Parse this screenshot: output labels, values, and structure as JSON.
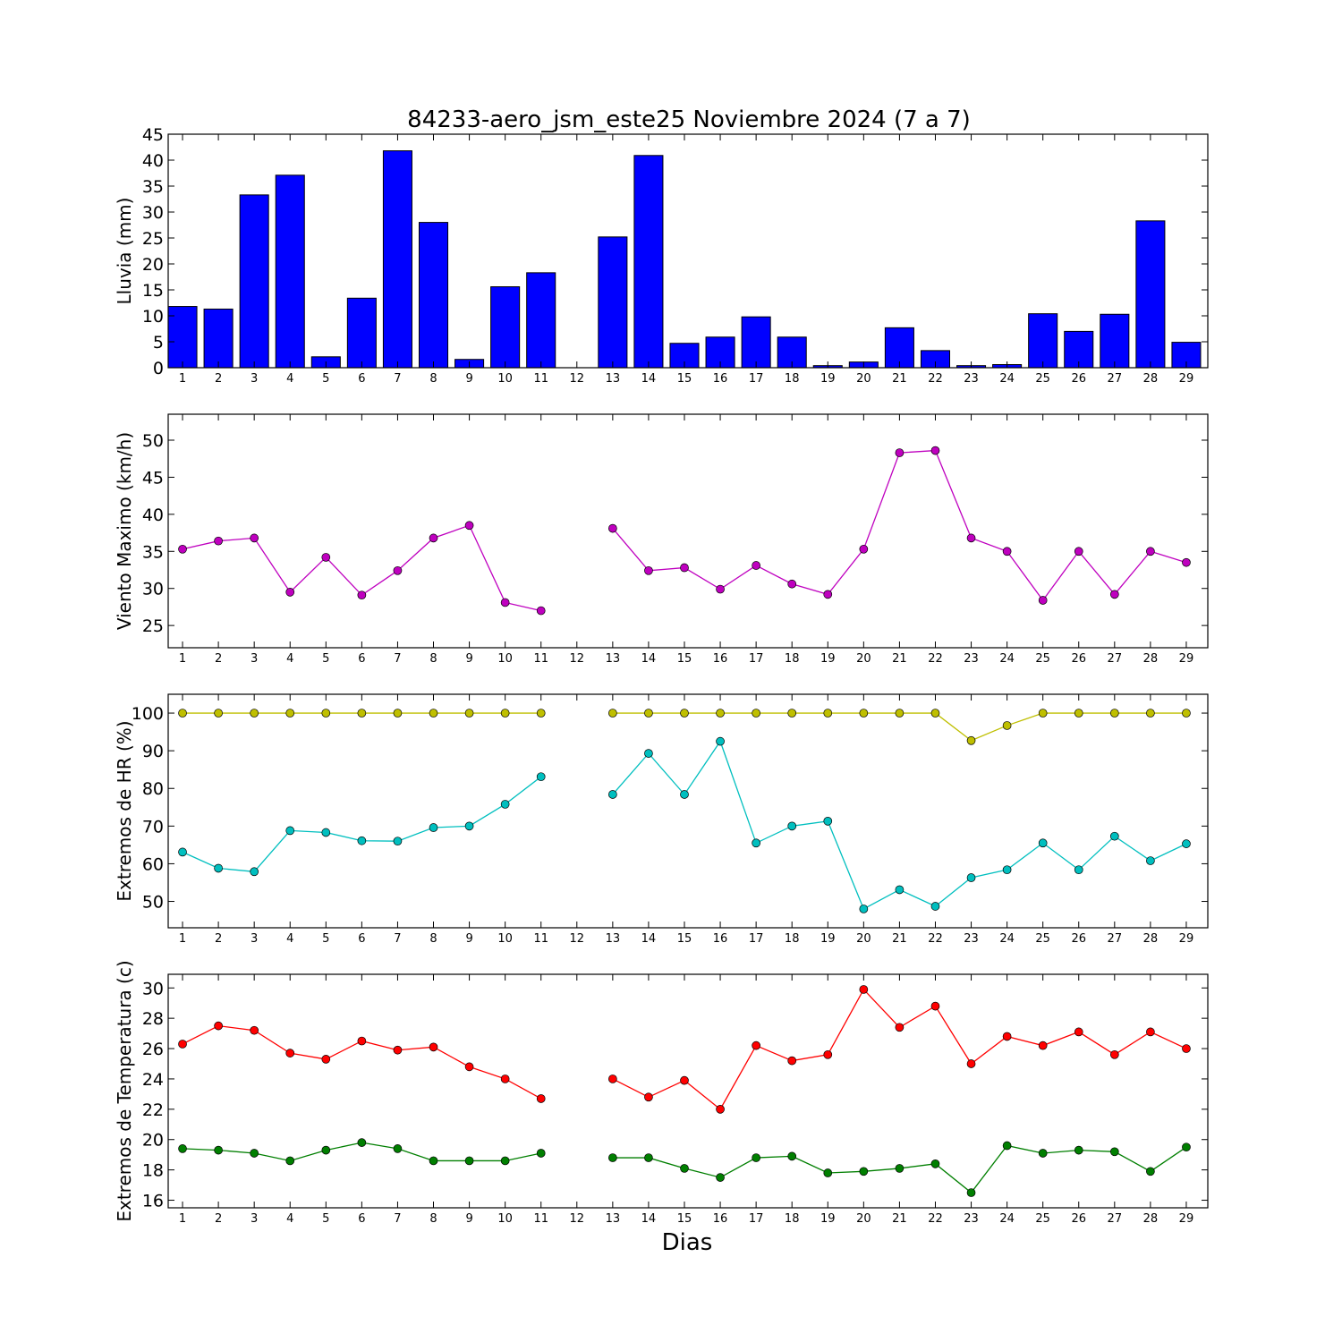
{
  "title": "84233-aero_jsm_este25 Noviembre 2024  (7 a 7)",
  "xlabel": "Dias",
  "chart_data": [
    {
      "type": "bar",
      "ylabel": "Lluvia (mm)",
      "ylim": [
        0,
        45
      ],
      "yticks": [
        0,
        5,
        10,
        15,
        20,
        25,
        30,
        35,
        40,
        45
      ],
      "categories": [
        1,
        2,
        3,
        4,
        5,
        6,
        7,
        8,
        9,
        10,
        11,
        12,
        13,
        14,
        15,
        16,
        17,
        18,
        19,
        20,
        21,
        22,
        23,
        24,
        25,
        26,
        27,
        28,
        29
      ],
      "series": [
        {
          "color": "#0000ff",
          "values": [
            11.8,
            11.3,
            33.3,
            37.1,
            2.1,
            13.4,
            41.8,
            28.0,
            1.6,
            15.6,
            18.3,
            0,
            25.2,
            40.9,
            4.7,
            5.9,
            9.8,
            5.9,
            0.4,
            1.1,
            7.7,
            3.3,
            0.4,
            0.6,
            10.4,
            7.0,
            10.3,
            28.3,
            4.9
          ]
        }
      ]
    },
    {
      "type": "line",
      "ylabel": "Viento Maximo (km/h)",
      "ylim": [
        22,
        53.5
      ],
      "yticks": [
        25,
        30,
        35,
        40,
        45,
        50
      ],
      "x": [
        1,
        2,
        3,
        4,
        5,
        6,
        7,
        8,
        9,
        10,
        11,
        12,
        13,
        14,
        15,
        16,
        17,
        18,
        19,
        20,
        21,
        22,
        23,
        24,
        25,
        26,
        27,
        28,
        29
      ],
      "series": [
        {
          "color": "#bf00bf",
          "values": [
            35.3,
            36.4,
            36.8,
            29.5,
            34.2,
            29.1,
            32.4,
            36.8,
            38.5,
            28.1,
            27.0,
            null,
            38.1,
            32.4,
            32.8,
            29.9,
            33.1,
            30.6,
            29.2,
            35.3,
            48.3,
            48.6,
            36.8,
            35.0,
            28.4,
            35.0,
            29.2,
            35.0,
            33.5
          ]
        }
      ]
    },
    {
      "type": "line",
      "ylabel": "Extremos de HR (%)",
      "ylim": [
        43,
        105
      ],
      "yticks": [
        50,
        60,
        70,
        80,
        90,
        100
      ],
      "x": [
        1,
        2,
        3,
        4,
        5,
        6,
        7,
        8,
        9,
        10,
        11,
        12,
        13,
        14,
        15,
        16,
        17,
        18,
        19,
        20,
        21,
        22,
        23,
        24,
        25,
        26,
        27,
        28,
        29
      ],
      "series": [
        {
          "color": "#bfbf00",
          "values": [
            100,
            100,
            100,
            100,
            100,
            100,
            100,
            100,
            100,
            100,
            100,
            null,
            100,
            100,
            100,
            100,
            100,
            100,
            100,
            100,
            100,
            100,
            92.7,
            96.7,
            100,
            100,
            100,
            100,
            100
          ]
        },
        {
          "color": "#00bfbf",
          "values": [
            63.1,
            58.8,
            57.9,
            68.8,
            68.3,
            66.1,
            66.0,
            69.6,
            70.0,
            75.8,
            83.1,
            null,
            78.4,
            89.3,
            78.4,
            92.5,
            65.5,
            70.0,
            71.3,
            48.0,
            53.1,
            48.7,
            56.3,
            58.4,
            65.5,
            58.4,
            67.3,
            60.8,
            65.3
          ]
        }
      ]
    },
    {
      "type": "line",
      "ylabel": "Extremos de Temperatura (c)",
      "ylim": [
        15.5,
        30.9
      ],
      "yticks": [
        16,
        18,
        20,
        22,
        24,
        26,
        28,
        30
      ],
      "x": [
        1,
        2,
        3,
        4,
        5,
        6,
        7,
        8,
        9,
        10,
        11,
        12,
        13,
        14,
        15,
        16,
        17,
        18,
        19,
        20,
        21,
        22,
        23,
        24,
        25,
        26,
        27,
        28,
        29
      ],
      "series": [
        {
          "color": "#ff0000",
          "values": [
            26.3,
            27.5,
            27.2,
            25.7,
            25.3,
            26.5,
            25.9,
            26.1,
            24.8,
            24.0,
            22.7,
            null,
            24.0,
            22.8,
            23.9,
            22.0,
            26.2,
            25.2,
            25.6,
            29.9,
            27.4,
            28.8,
            25.0,
            26.8,
            26.2,
            27.1,
            25.6,
            27.1,
            26.0
          ]
        },
        {
          "color": "#007f00",
          "values": [
            19.4,
            19.3,
            19.1,
            18.6,
            19.3,
            19.8,
            19.4,
            18.6,
            18.6,
            18.6,
            19.1,
            null,
            18.8,
            18.8,
            18.1,
            17.5,
            18.8,
            18.9,
            17.8,
            17.9,
            18.1,
            18.4,
            16.5,
            19.6,
            19.1,
            19.3,
            19.2,
            17.9,
            19.5
          ]
        }
      ]
    }
  ]
}
